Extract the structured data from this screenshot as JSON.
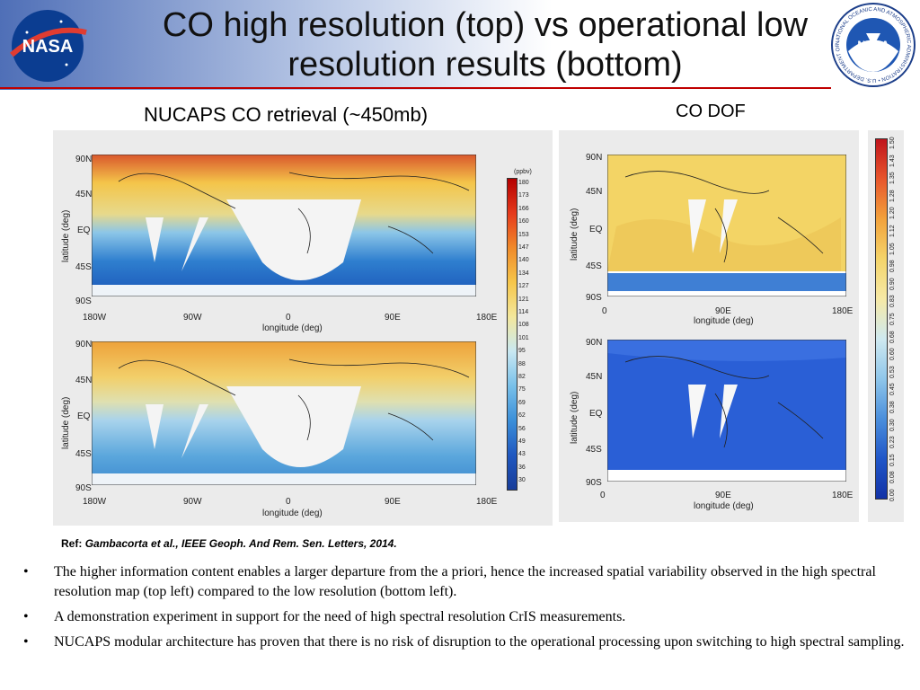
{
  "title": "CO high resolution (top) vs operational low resolution results (bottom)",
  "logos": {
    "left": "NASA",
    "right": "NOAA",
    "noaa_ring": "NATIONAL OCEANIC AND ATMOSPHERIC ADMINISTRATION • U.S. DEPARTMENT OF COMMERCE"
  },
  "left_label": "NUCAPS CO retrieval (~450mb)",
  "right_label": "CO DOF",
  "axes": {
    "ylabel": "latitude (deg)",
    "xlabel": "longitude (deg)",
    "lat_ticks": [
      "90N",
      "45N",
      "EQ",
      "45S",
      "90S"
    ],
    "lon_ticks_left": [
      "180W",
      "90W",
      "0",
      "90E",
      "180E"
    ],
    "lon_ticks_right": [
      "0",
      "90E",
      "180E"
    ]
  },
  "colorbar_left": {
    "unit": "(ppbv)",
    "ticks": [
      "180",
      "173",
      "166",
      "160",
      "153",
      "147",
      "140",
      "134",
      "127",
      "121",
      "114",
      "108",
      "101",
      "95",
      "88",
      "82",
      "75",
      "69",
      "62",
      "56",
      "49",
      "43",
      "36",
      "30"
    ]
  },
  "colorbar_right": {
    "ticks": [
      "1.50",
      "1.43",
      "1.35",
      "1.28",
      "1.20",
      "1.12",
      "1.05",
      "0.98",
      "0.90",
      "0.83",
      "0.75",
      "0.68",
      "0.60",
      "0.53",
      "0.45",
      "0.38",
      "0.30",
      "0.23",
      "0.15",
      "0.08",
      "0.00"
    ]
  },
  "reference": {
    "prefix": "Ref:",
    "text": "Gambacorta et al., IEEE Geoph. And Rem. Sen. Letters, 2014."
  },
  "bullets": [
    "The higher information content enables a larger departure from the a priori, hence the increased spatial variability observed in the high spectral resolution map  (top left) compared to the low resolution (bottom left).",
    "A demonstration experiment in support for the need of high spectral resolution CrIS measurements.",
    "NUCAPS modular architecture has proven that there is no risk of disruption to the operational processing upon switching to high spectral sampling."
  ],
  "bullet_symbol": "•"
}
